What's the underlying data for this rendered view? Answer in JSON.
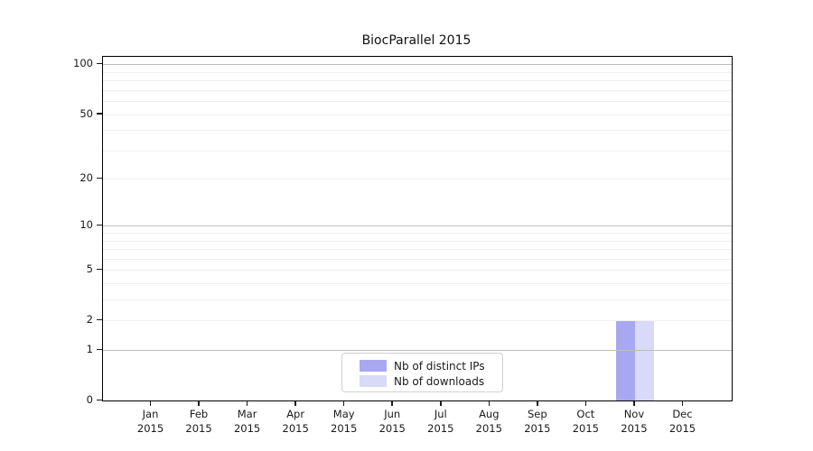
{
  "chart_data": {
    "type": "bar",
    "title": "BiocParallel 2015",
    "categories": [
      "Jan",
      "Feb",
      "Mar",
      "Apr",
      "May",
      "Jun",
      "Jul",
      "Aug",
      "Sep",
      "Oct",
      "Nov",
      "Dec"
    ],
    "x_tick_year": "2015",
    "series": [
      {
        "name": "Nb of distinct IPs",
        "color": "#a8a8f0",
        "values": [
          0,
          0,
          0,
          0,
          0,
          0,
          0,
          0,
          0,
          0,
          2,
          0
        ]
      },
      {
        "name": "Nb of downloads",
        "color": "#d9d9f8",
        "values": [
          0,
          0,
          0,
          0,
          0,
          0,
          0,
          0,
          0,
          0,
          2,
          0
        ]
      }
    ],
    "y_axis": {
      "scale": "log10(value+1)",
      "tick_labels": [
        0,
        1,
        2,
        5,
        10,
        20,
        50,
        100
      ],
      "major_gridlines": [
        1,
        10,
        100
      ],
      "minor_gridlines": [
        2,
        3,
        4,
        5,
        6,
        7,
        8,
        9,
        20,
        30,
        40,
        50,
        60,
        70,
        80,
        90
      ],
      "ylim": [
        0,
        111
      ]
    },
    "grid": true,
    "legend_position": "inside-bottom-center"
  },
  "legend": {
    "items": [
      {
        "label": "Nb of distinct IPs",
        "color": "#a8a8f0"
      },
      {
        "label": "Nb of downloads",
        "color": "#d9d9f8"
      }
    ]
  },
  "colors": {
    "axis": "#000000",
    "major_grid": "#bdbdbd",
    "minor_grid": "#eeeeee",
    "text": "#1a1a1a",
    "legend_border": "#d0d0d0",
    "background": "#ffffff"
  }
}
